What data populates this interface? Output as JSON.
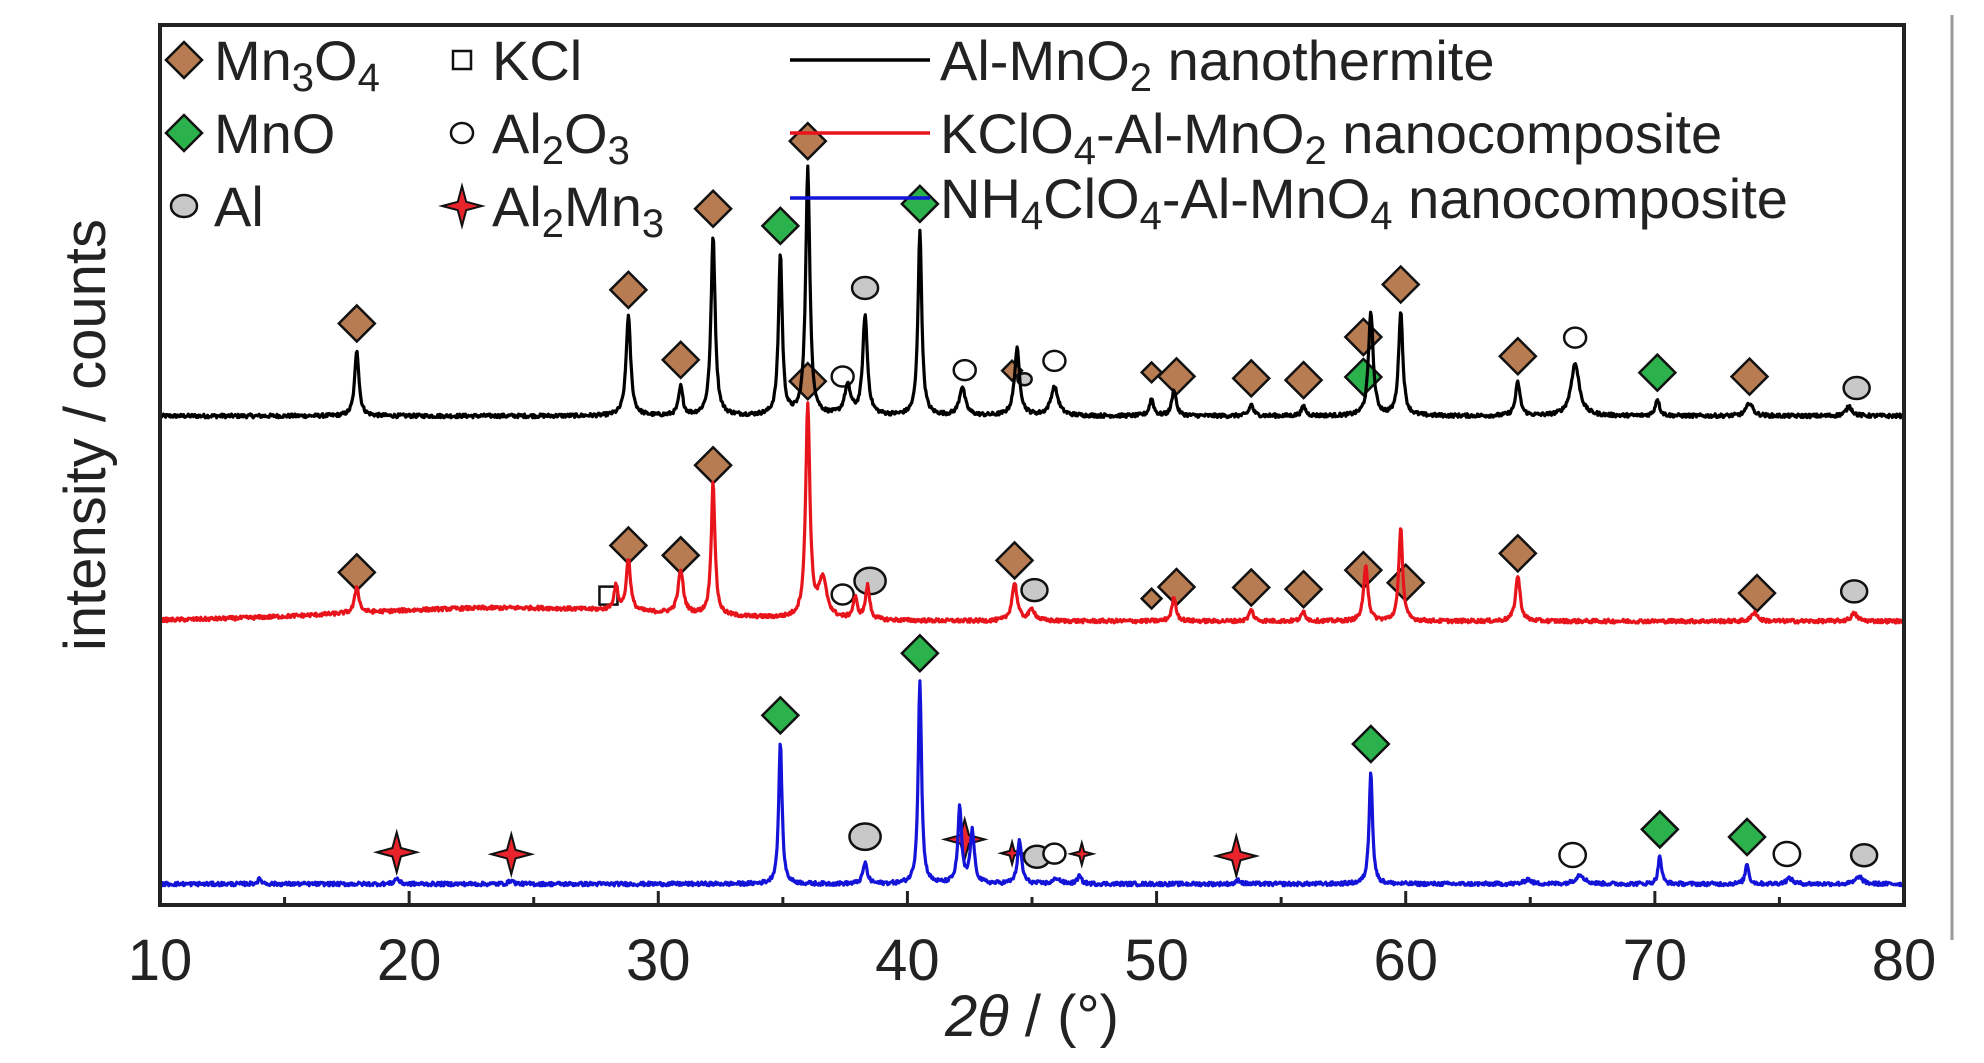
{
  "chart_data": {
    "type": "line",
    "xlabel": "2θ / (°)",
    "xlabel_symbol": "2θ",
    "xlabel_unit": " / (°)",
    "ylabel": "intensity / counts",
    "xlim": [
      10,
      80
    ],
    "xticks": [
      10,
      20,
      30,
      40,
      50,
      60,
      70,
      80
    ],
    "yaxis": "arbitrary units, no tick labels; patterns vertically offset",
    "grid": false,
    "legend_placement": "top",
    "phase_legend": [
      {
        "marker": "diamond-brown",
        "label": "Mn3O4"
      },
      {
        "marker": "diamond-green",
        "label": "MnO"
      },
      {
        "marker": "circle-gray",
        "label": "Al"
      },
      {
        "marker": "square-open",
        "label": "KCl"
      },
      {
        "marker": "circle-open",
        "label": "Al2O3"
      },
      {
        "marker": "star-red",
        "label": "Al2Mn3"
      }
    ],
    "marker_colors": {
      "mn3o4": "#b87c52",
      "mno": "#2bb24c",
      "al": "#c8c8c8",
      "star": "#e8232b"
    },
    "series": [
      {
        "name": "Al-MnO2 nanothermite",
        "color": "#000000",
        "baseline": 0,
        "peaks": [
          [
            17.9,
            70,
            0.2
          ],
          [
            28.8,
            105,
            0.22
          ],
          [
            30.9,
            30,
            0.2
          ],
          [
            32.2,
            190,
            0.2
          ],
          [
            34.9,
            170,
            0.18
          ],
          [
            36.0,
            260,
            0.2
          ],
          [
            37.6,
            30,
            0.3
          ],
          [
            38.3,
            105,
            0.22
          ],
          [
            40.5,
            195,
            0.18
          ],
          [
            42.2,
            30,
            0.28
          ],
          [
            44.4,
            70,
            0.25
          ],
          [
            45.9,
            30,
            0.35
          ],
          [
            49.8,
            18,
            0.2
          ],
          [
            50.7,
            28,
            0.2
          ],
          [
            53.8,
            12,
            0.2
          ],
          [
            55.9,
            10,
            0.2
          ],
          [
            58.6,
            110,
            0.22
          ],
          [
            59.8,
            110,
            0.2
          ],
          [
            64.5,
            35,
            0.22
          ],
          [
            66.8,
            55,
            0.4
          ],
          [
            70.1,
            18,
            0.2
          ],
          [
            73.8,
            14,
            0.3
          ],
          [
            77.8,
            10,
            0.3
          ]
        ],
        "markers": [
          [
            17.9,
            "mn3o4"
          ],
          [
            28.8,
            "mn3o4"
          ],
          [
            30.9,
            "mn3o4"
          ],
          [
            32.2,
            "mn3o4"
          ],
          [
            34.9,
            "mno"
          ],
          [
            36.0,
            "mn3o4"
          ],
          [
            37.4,
            "al2o3"
          ],
          [
            38.3,
            "al"
          ],
          [
            40.5,
            "mno"
          ],
          [
            42.3,
            "al2o3"
          ],
          [
            44.2,
            "mn3o4-small"
          ],
          [
            44.7,
            "al-small"
          ],
          [
            45.9,
            "al2o3"
          ],
          [
            49.8,
            "mn3o4-small"
          ],
          [
            50.8,
            "mn3o4"
          ],
          [
            53.8,
            "mn3o4"
          ],
          [
            55.9,
            "mn3o4"
          ],
          [
            58.3,
            "mno"
          ],
          [
            58.3,
            "mn3o4"
          ],
          [
            59.8,
            "mn3o4"
          ],
          [
            64.5,
            "mn3o4"
          ],
          [
            66.8,
            "al2o3"
          ],
          [
            70.1,
            "mno"
          ],
          [
            73.8,
            "mn3o4"
          ],
          [
            78.1,
            "al"
          ]
        ]
      },
      {
        "name": "KClO4-Al-MnO2 nanocomposite",
        "color": "#e8141b",
        "baseline": 0,
        "peaks": [
          [
            17.9,
            28,
            0.2
          ],
          [
            28.3,
            25,
            0.2
          ],
          [
            28.8,
            55,
            0.2
          ],
          [
            30.9,
            45,
            0.25
          ],
          [
            32.2,
            140,
            0.18
          ],
          [
            36.0,
            225,
            0.2
          ],
          [
            36.6,
            40,
            0.4
          ],
          [
            37.9,
            22,
            0.2
          ],
          [
            38.4,
            35,
            0.2
          ],
          [
            44.3,
            40,
            0.25
          ],
          [
            45.0,
            12,
            0.3
          ],
          [
            50.7,
            25,
            0.2
          ],
          [
            53.8,
            12,
            0.2
          ],
          [
            55.9,
            10,
            0.2
          ],
          [
            58.4,
            60,
            0.2
          ],
          [
            59.8,
            100,
            0.18
          ],
          [
            64.5,
            48,
            0.22
          ],
          [
            74.0,
            10,
            0.25
          ],
          [
            78.0,
            8,
            0.3
          ]
        ],
        "markers": [
          [
            17.9,
            "mn3o4"
          ],
          [
            28.0,
            "kcl"
          ],
          [
            28.8,
            "mn3o4"
          ],
          [
            30.9,
            "mn3o4"
          ],
          [
            32.2,
            "mn3o4"
          ],
          [
            36.0,
            "mn3o4"
          ],
          [
            37.4,
            "al2o3"
          ],
          [
            38.5,
            "al-large"
          ],
          [
            44.3,
            "mn3o4"
          ],
          [
            45.1,
            "al"
          ],
          [
            49.8,
            "mn3o4-small"
          ],
          [
            50.8,
            "mn3o4"
          ],
          [
            53.8,
            "mn3o4"
          ],
          [
            55.9,
            "mn3o4"
          ],
          [
            58.3,
            "mn3o4"
          ],
          [
            60.0,
            "mn3o4"
          ],
          [
            64.5,
            "mn3o4"
          ],
          [
            74.1,
            "mn3o4"
          ],
          [
            78.0,
            "al"
          ]
        ]
      },
      {
        "name": "NH4ClO4-Al-MnO4 nanocomposite",
        "color": "#1414d9",
        "baseline": 0,
        "peaks": [
          [
            14.0,
            5,
            0.2
          ],
          [
            19.5,
            6,
            0.2
          ],
          [
            24.1,
            4,
            0.2
          ],
          [
            34.9,
            150,
            0.16
          ],
          [
            38.3,
            22,
            0.2
          ],
          [
            40.5,
            215,
            0.16
          ],
          [
            42.1,
            80,
            0.18
          ],
          [
            42.6,
            55,
            0.2
          ],
          [
            44.5,
            45,
            0.2
          ],
          [
            46.0,
            6,
            0.3
          ],
          [
            46.9,
            8,
            0.2
          ],
          [
            53.3,
            4,
            0.2
          ],
          [
            58.6,
            120,
            0.16
          ],
          [
            64.9,
            5,
            0.3
          ],
          [
            67.0,
            10,
            0.4
          ],
          [
            70.2,
            30,
            0.16
          ],
          [
            73.7,
            22,
            0.16
          ],
          [
            75.4,
            6,
            0.3
          ],
          [
            78.2,
            8,
            0.3
          ]
        ],
        "markers": [
          [
            19.5,
            "star"
          ],
          [
            24.1,
            "star"
          ],
          [
            34.9,
            "mno"
          ],
          [
            38.3,
            "al-large"
          ],
          [
            40.5,
            "mno"
          ],
          [
            42.3,
            "star"
          ],
          [
            44.2,
            "star-small"
          ],
          [
            45.2,
            "al"
          ],
          [
            45.9,
            "al2o3"
          ],
          [
            47.0,
            "star-small"
          ],
          [
            53.2,
            "star"
          ],
          [
            58.6,
            "mno"
          ],
          [
            66.7,
            "al2o3-large"
          ],
          [
            70.2,
            "mno"
          ],
          [
            73.7,
            "mno"
          ],
          [
            75.3,
            "al2o3-large"
          ],
          [
            78.4,
            "al"
          ]
        ]
      }
    ]
  }
}
